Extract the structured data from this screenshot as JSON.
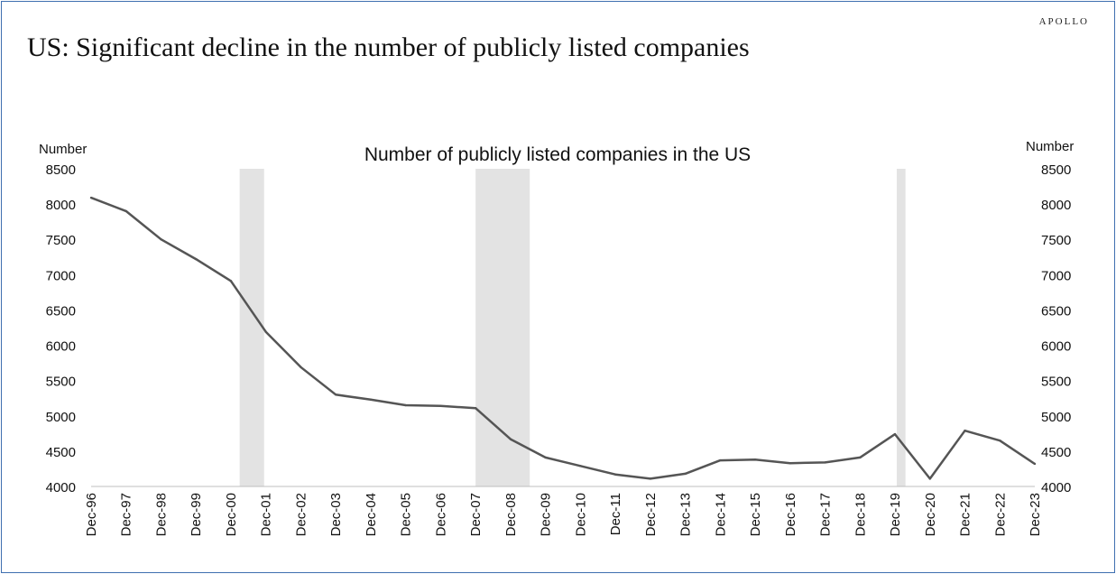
{
  "brand": "APOLLO",
  "headline": "US: Significant decline in the number of publicly listed companies",
  "chart_data": {
    "type": "line",
    "title": "Number of publicly listed companies in the US",
    "ylabel_left": "Number",
    "ylabel_right": "Number",
    "ylim": [
      4000,
      8500
    ],
    "yticks": [
      4000,
      4500,
      5000,
      5500,
      6000,
      6500,
      7000,
      7500,
      8000,
      8500
    ],
    "categories": [
      "Dec-96",
      "Dec-97",
      "Dec-98",
      "Dec-99",
      "Dec-00",
      "Dec-01",
      "Dec-02",
      "Dec-03",
      "Dec-04",
      "Dec-05",
      "Dec-06",
      "Dec-07",
      "Dec-08",
      "Dec-09",
      "Dec-10",
      "Dec-11",
      "Dec-12",
      "Dec-13",
      "Dec-14",
      "Dec-15",
      "Dec-16",
      "Dec-17",
      "Dec-18",
      "Dec-19",
      "Dec-20",
      "Dec-21",
      "Dec-22",
      "Dec-23"
    ],
    "values": [
      8090,
      7900,
      7500,
      7220,
      6910,
      6190,
      5690,
      5300,
      5230,
      5150,
      5140,
      5110,
      4670,
      4410,
      4290,
      4170,
      4110,
      4180,
      4370,
      4380,
      4330,
      4340,
      4410,
      4740,
      4110,
      4790,
      4650,
      4320
    ],
    "line_color": "#555555",
    "recession_color": "#e3e3e3",
    "recessions": [
      [
        4.25,
        4.95
      ],
      [
        11.0,
        12.55
      ],
      [
        23.05,
        23.3
      ]
    ],
    "grid": false,
    "legend": "none"
  }
}
